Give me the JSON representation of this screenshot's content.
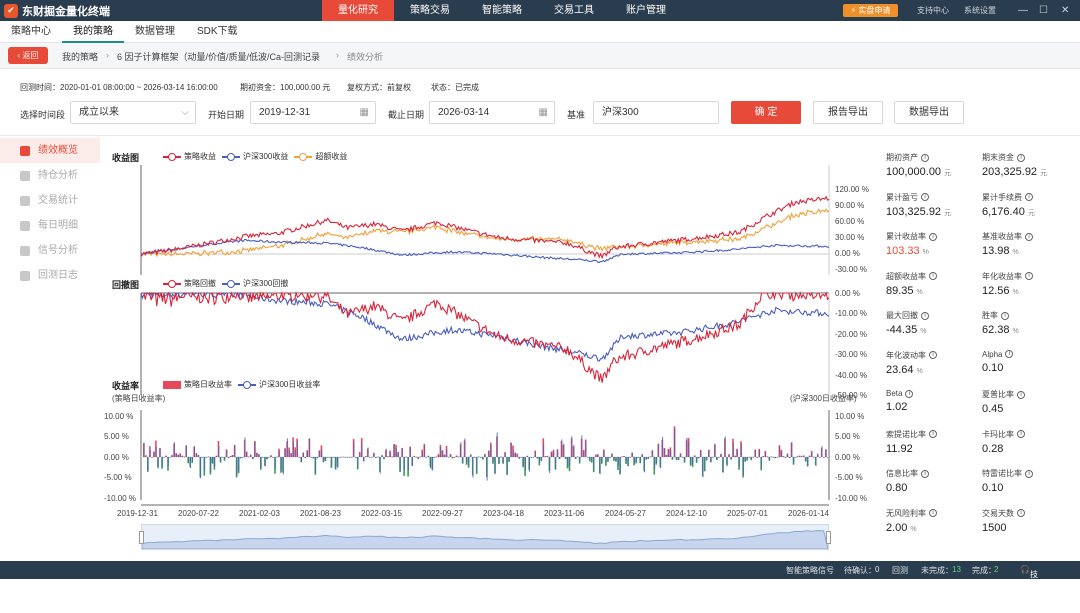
{
  "app": {
    "title": "东财掘金量化终端",
    "nav": [
      "量化研究",
      "策略交易",
      "智能策略",
      "交易工具",
      "账户管理"
    ],
    "nav_active": 0,
    "sim_button": "实盘申请",
    "support": "支持中心",
    "settings": "系统设置"
  },
  "subnav": [
    "策略中心",
    "我的策略",
    "数据管理",
    "SDK下载"
  ],
  "breadcrumb": {
    "back": "返回",
    "items": [
      "我的策略",
      "6 因子计算框架（动量/价值/质量/低波/Ca-回测记录",
      "绩效分析"
    ]
  },
  "info": {
    "backtest_time": "回测时间：2020-01-01 08:00:00 ~ 2026-03-14 16:00:00",
    "initial_capital": "期初资金：100,000.00 元",
    "adjust": "复权方式：前复权",
    "status": "状态：已完成"
  },
  "form": {
    "period_label": "选择时间段",
    "period_value": "成立以来",
    "start_label": "开始日期",
    "start_value": "2019-12-31",
    "end_label": "截止日期",
    "end_value": "2026-03-14",
    "bench_label": "基准",
    "bench_value": "沪深300",
    "confirm": "确 定",
    "report_export": "报告导出",
    "data_export": "数据导出"
  },
  "sidebar": [
    "绩效概览",
    "持仓分析",
    "交易统计",
    "每日明细",
    "信号分析",
    "回测日志"
  ],
  "charts": {
    "returns_title": "收益图",
    "returns_legend": [
      "策略收益",
      "沪深300收益",
      "超额收益"
    ],
    "returns_ticks": [
      "120.00 %",
      "90.00 %",
      "60.00 %",
      "30.00 %",
      "0.00 %",
      "-30.00 %"
    ],
    "dd_title": "回撤图",
    "dd_legend": [
      "策略回撤",
      "沪深300回撤"
    ],
    "dd_ticks": [
      "0.00 %",
      "-10.00 %",
      "-20.00 %",
      "-30.00 %",
      "-40.00 %",
      "-50.00 %"
    ],
    "daily_title": "收益率",
    "daily_legend": [
      "策略日收益率",
      "沪深300日收益率"
    ],
    "daily_left_axis": "(策略日收益率)",
    "daily_right_axis": "(沪深300日收益率)",
    "daily_ticks": [
      "10.00 %",
      "5.00 %",
      "0.00 %",
      "-5.00 %",
      "-10.00 %"
    ],
    "x_ticks": [
      "2019-12-31",
      "2020-07-22",
      "2021-02-03",
      "2021-08-23",
      "2022-03-15",
      "2022-09-27",
      "2023-04-18",
      "2023-11-06",
      "2024-05-27",
      "2024-12-10",
      "2025-07-01",
      "2026-01-14"
    ]
  },
  "colors": {
    "strategy": "#d9253a",
    "benchmark": "#4a5fc1",
    "excess": "#f0a13a",
    "accent": "#e84a3a",
    "topbar": "#2a3d4e"
  },
  "stats": [
    {
      "label": "期初资产",
      "value": "100,000.00",
      "unit": "元"
    },
    {
      "label": "期末资金",
      "value": "203,325.92",
      "unit": "元"
    },
    {
      "label": "累计盈亏",
      "value": "103,325.92",
      "unit": "元"
    },
    {
      "label": "累计手续费",
      "value": "6,176.40",
      "unit": "元"
    },
    {
      "label": "累计收益率",
      "value": "103.33",
      "unit": "%",
      "red": true
    },
    {
      "label": "基准收益率",
      "value": "13.98",
      "unit": "%"
    },
    {
      "label": "超额收益率",
      "value": "89.35",
      "unit": "%"
    },
    {
      "label": "年化收益率",
      "value": "12.56",
      "unit": "%"
    },
    {
      "label": "最大回撤",
      "value": "-44.35",
      "unit": "%"
    },
    {
      "label": "胜率",
      "value": "62.38",
      "unit": "%"
    },
    {
      "label": "年化波动率",
      "value": "23.64",
      "unit": "%"
    },
    {
      "label": "Alpha",
      "value": "0.10",
      "unit": ""
    },
    {
      "label": "Beta",
      "value": "1.02",
      "unit": ""
    },
    {
      "label": "夏普比率",
      "value": "0.45",
      "unit": ""
    },
    {
      "label": "索提诺比率",
      "value": "11.92",
      "unit": ""
    },
    {
      "label": "卡玛比率",
      "value": "0.28",
      "unit": ""
    },
    {
      "label": "信息比率",
      "value": "0.80",
      "unit": ""
    },
    {
      "label": "特雷诺比率",
      "value": "0.10",
      "unit": ""
    },
    {
      "label": "无风险利率",
      "value": "2.00",
      "unit": "%"
    },
    {
      "label": "交易天数",
      "value": "1500",
      "unit": ""
    }
  ],
  "bottom": {
    "signal": "智能策略信号",
    "pending": "待确认：",
    "pending_n": "0",
    "backtest": "回测",
    "unfinished": "未完成：",
    "unfinished_n": "13",
    "finished": "完成：",
    "finished_n": "2",
    "support": "技术支持"
  }
}
